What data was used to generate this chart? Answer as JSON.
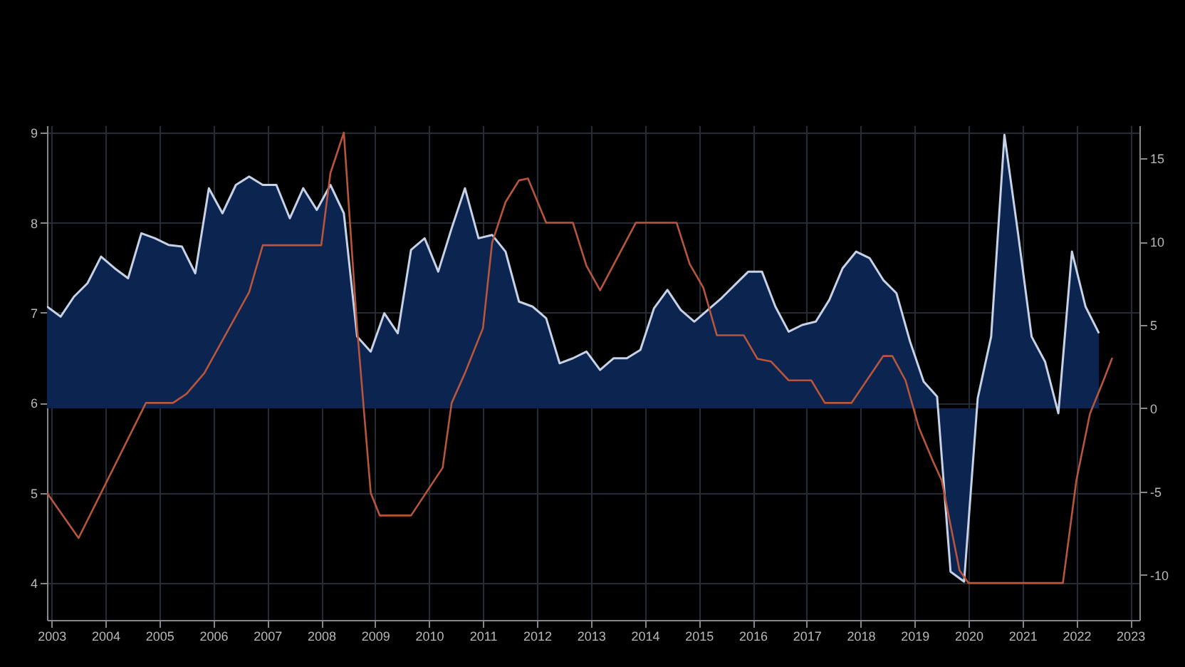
{
  "chart_data": {
    "type": "line",
    "series": [
      {
        "type": "area",
        "axis": "y2",
        "color": "#c8d2e6",
        "x": [
          "2003-06",
          "2003-09",
          "2003-12",
          "2004-03",
          "2004-06",
          "2004-09",
          "2004-12",
          "2005-03",
          "2005-06",
          "2005-09",
          "2005-12",
          "2006-03",
          "2006-06",
          "2006-09",
          "2006-12",
          "2007-03",
          "2007-06",
          "2007-09",
          "2007-12",
          "2008-03",
          "2008-06",
          "2008-09",
          "2008-12",
          "2009-03",
          "2009-06",
          "2009-09",
          "2009-12",
          "2010-03",
          "2010-06",
          "2010-09",
          "2010-12",
          "2011-03",
          "2011-06",
          "2011-09",
          "2011-12",
          "2012-03",
          "2012-06",
          "2012-09",
          "2012-12",
          "2013-03",
          "2013-06",
          "2013-09",
          "2013-12",
          "2014-03",
          "2014-06",
          "2014-09",
          "2014-12",
          "2015-03",
          "2015-06",
          "2015-09",
          "2015-12",
          "2016-03",
          "2016-06",
          "2016-09",
          "2016-12",
          "2017-03",
          "2017-06",
          "2017-09",
          "2017-12",
          "2018-03",
          "2018-06",
          "2018-09",
          "2018-12",
          "2019-03",
          "2019-06",
          "2019-09",
          "2019-12",
          "2020-03",
          "2020-06",
          "2020-09",
          "2020-12",
          "2021-03",
          "2021-06",
          "2021-09",
          "2021-12",
          "2022-03",
          "2022-06",
          "2022-09",
          "2022-12"
        ],
        "values": [
          6.1,
          5.5,
          6.7,
          7.5,
          9.1,
          8.4,
          7.8,
          10.5,
          10.2,
          9.8,
          9.7,
          8.1,
          13.2,
          11.7,
          13.4,
          13.9,
          13.4,
          13.4,
          11.4,
          13.2,
          11.9,
          13.4,
          11.7,
          4.3,
          3.4,
          5.7,
          4.5,
          9.5,
          10.2,
          8.2,
          10.8,
          13.2,
          10.2,
          10.4,
          9.4,
          6.4,
          6.1,
          5.4,
          2.7,
          3.0,
          3.4,
          2.3,
          3.0,
          3.0,
          3.5,
          6.0,
          7.1,
          5.9,
          5.2,
          5.9,
          6.6,
          7.4,
          8.2,
          8.2,
          6.1,
          4.6,
          5.0,
          5.2,
          6.5,
          8.4,
          9.4,
          9.0,
          7.7,
          6.9,
          4.0,
          1.6,
          0.7,
          -9.8,
          -10.4,
          0.6,
          4.3,
          16.4,
          10.5,
          4.3,
          2.8,
          -0.3,
          9.4,
          6.1,
          4.5
        ]
      },
      {
        "axis": "y",
        "color": "#b8563c",
        "x": [
          "2003-06",
          "2004-01",
          "2005-04",
          "2005-10",
          "2006-01",
          "2006-05",
          "2007-03",
          "2007-06",
          "2008-07",
          "2008-09",
          "2008-12",
          "2009-03",
          "2009-06",
          "2009-08",
          "2010-03",
          "2010-10",
          "2010-12",
          "2011-03",
          "2011-07",
          "2011-09",
          "2011-12",
          "2012-03",
          "2012-05",
          "2012-09",
          "2013-03",
          "2013-06",
          "2013-09",
          "2014-05",
          "2015-02",
          "2015-05",
          "2015-08",
          "2015-11",
          "2016-05",
          "2016-08",
          "2016-11",
          "2017-03",
          "2017-08",
          "2017-11",
          "2018-05",
          "2018-12",
          "2019-02",
          "2019-05",
          "2019-08",
          "2019-11",
          "2020-01",
          "2020-05",
          "2020-07",
          "2022-04",
          "2022-07",
          "2022-10",
          "2023-01",
          "2023-03"
        ],
        "values": [
          5.0,
          4.5,
          6.0,
          6.0,
          6.1,
          6.33,
          7.23,
          7.75,
          7.75,
          8.55,
          9.0,
          6.83,
          5.0,
          4.75,
          4.75,
          5.28,
          6.0,
          6.33,
          6.83,
          7.78,
          8.23,
          8.47,
          8.49,
          8.0,
          8.0,
          7.52,
          7.25,
          8.0,
          8.0,
          7.54,
          7.28,
          6.75,
          6.75,
          6.49,
          6.46,
          6.25,
          6.25,
          6.0,
          6.0,
          6.52,
          6.52,
          6.25,
          5.72,
          5.36,
          5.14,
          4.14,
          4.0,
          4.0,
          5.14,
          5.88,
          6.25,
          6.5
        ]
      }
    ],
    "xlim": [
      "2003-06",
      "2023-09"
    ],
    "xticks": [
      {
        "value": "2003-07",
        "label": "2003"
      },
      {
        "value": "2004-07",
        "label": "2004"
      },
      {
        "value": "2005-07",
        "label": "2005"
      },
      {
        "value": "2006-07",
        "label": "2006"
      },
      {
        "value": "2007-07",
        "label": "2007"
      },
      {
        "value": "2008-07",
        "label": "2008"
      },
      {
        "value": "2009-07",
        "label": "2009"
      },
      {
        "value": "2010-07",
        "label": "2010"
      },
      {
        "value": "2011-07",
        "label": "2011"
      },
      {
        "value": "2012-07",
        "label": "2012"
      },
      {
        "value": "2013-07",
        "label": "2013"
      },
      {
        "value": "2014-07",
        "label": "2014"
      },
      {
        "value": "2015-07",
        "label": "2015"
      },
      {
        "value": "2016-07",
        "label": "2016"
      },
      {
        "value": "2017-07",
        "label": "2017"
      },
      {
        "value": "2018-07",
        "label": "2018"
      },
      {
        "value": "2019-07",
        "label": "2019"
      },
      {
        "value": "2020-07",
        "label": "2020"
      },
      {
        "value": "2021-07",
        "label": "2021"
      },
      {
        "value": "2022-07",
        "label": "2022"
      },
      {
        "value": "2023-07",
        "label": "2023"
      }
    ],
    "ylim": [
      3.59,
      9.08
    ],
    "yticks": [
      4,
      5,
      6,
      7,
      8,
      9
    ],
    "y2lim": [
      -12.7,
      16.97
    ],
    "y2ticks": [
      -10,
      -5,
      0,
      5,
      10,
      15
    ],
    "grid": true
  }
}
